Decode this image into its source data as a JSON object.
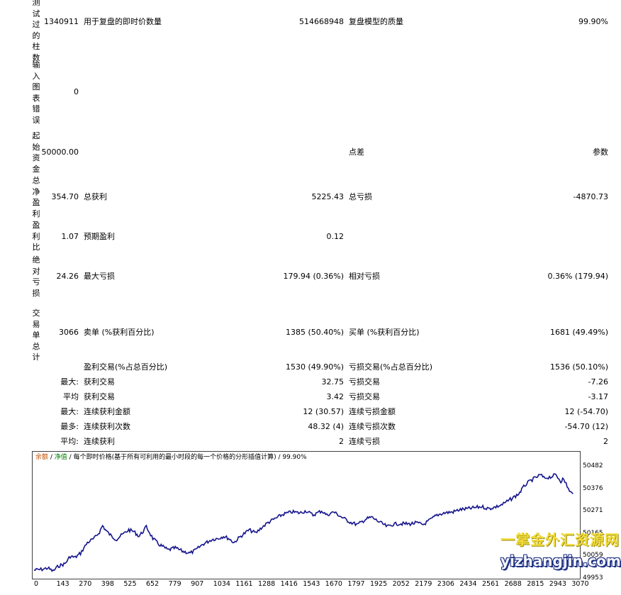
{
  "report": {
    "bars_label": "测试过的柱数",
    "bars_value": "1340911",
    "ticks_label": "用于复盘的即时价数量",
    "ticks_value": "514668948",
    "quality_label": "复盘模型的质量",
    "quality_value": "99.90%",
    "errors_label": "输入图表错误",
    "errors_value": "0",
    "deposit_label": "起始资金",
    "deposit_value": "50000.00",
    "spread_label": "点差",
    "spread_value": "参数",
    "net_profit_label": "总净盈利",
    "net_profit_value": "354.70",
    "gross_profit_label": "总获利",
    "gross_profit_value": "5225.43",
    "gross_loss_label": "总亏损",
    "gross_loss_value": "-4870.73",
    "profit_factor_label": "盈利比",
    "profit_factor_value": "1.07",
    "expected_payoff_label": "预期盈利",
    "expected_payoff_value": "0.12",
    "abs_drawdown_label": "绝对亏损",
    "abs_drawdown_value": "24.26",
    "max_drawdown_label": "最大亏损",
    "max_drawdown_value": "179.94 (0.36%)",
    "rel_drawdown_label": "相对亏损",
    "rel_drawdown_value": "0.36% (179.94)",
    "total_trades_label": "交易单总计",
    "total_trades_value": "3066",
    "short_label": "卖单 (%获利百分比)",
    "short_value": "1385 (50.40%)",
    "long_label": "买单 (%获利百分比)",
    "long_value": "1681 (49.49%)",
    "profit_trades_label": "盈利交易(%占总百分比)",
    "profit_trades_value": "1530 (49.90%)",
    "loss_trades_label": "亏损交易(%占总百分比)",
    "loss_trades_value": "1536 (50.10%)",
    "largest_prefix": "最大:",
    "largest_profit_label": "获利交易",
    "largest_profit_value": "32.75",
    "largest_loss_label": "亏损交易",
    "largest_loss_value": "-7.26",
    "average_prefix": "平均",
    "avg_profit_label": "获利交易",
    "avg_profit_value": "3.42",
    "avg_loss_label": "亏损交易",
    "avg_loss_value": "-3.17",
    "max_prefix": "最大:",
    "max_consec_wins_label": "连续获利金额",
    "max_consec_wins_value": "12 (30.57)",
    "max_consec_losses_label": "连续亏损金额",
    "max_consec_losses_value": "12 (-54.70)",
    "maximal_prefix": "最多:",
    "maximal_consec_profit_label": "连续获利次数",
    "maximal_consec_profit_value": "48.32 (4)",
    "maximal_consec_loss_label": "连续亏损次数",
    "maximal_consec_loss_value": "-54.70 (12)",
    "avg_consec_prefix": "平均:",
    "avg_consec_wins_label": "连续获利",
    "avg_consec_wins_value": "2",
    "avg_consec_losses_label": "连续亏损",
    "avg_consec_losses_value": "2"
  },
  "chart_legend": {
    "balance": "余额",
    "sep1": " / ",
    "equity": "净值",
    "sep2": " / ",
    "text": "每个即时价格(基于所有可利用的最小时段的每一个价格的分形插值计算) / 99.90%"
  },
  "watermark": {
    "line1": "一掌金外汇资源网",
    "line2": "yizhangjin.com"
  },
  "colors": {
    "balance_line": "#14148c",
    "legend_balance": "#c05000",
    "legend_equity": "#008000"
  },
  "chart_data": {
    "type": "line",
    "x_ticks": [
      "0",
      "143",
      "270",
      "398",
      "525",
      "652",
      "779",
      "907",
      "1034",
      "1161",
      "1288",
      "1416",
      "1543",
      "1670",
      "1797",
      "1925",
      "2052",
      "2179",
      "2306",
      "2434",
      "2561",
      "2688",
      "2815",
      "2943",
      "3070"
    ],
    "y_ticks": [
      "50482",
      "50376",
      "50271",
      "50165",
      "50059",
      "49953"
    ],
    "ylim": [
      49953,
      50482
    ],
    "xlim": [
      0,
      3162
    ],
    "grid": false,
    "series": [
      {
        "x": [
          0,
          40,
          80,
          110,
          143,
          180,
          210,
          240,
          270,
          310,
          350,
          380,
          398,
          420,
          450,
          480,
          500,
          525,
          550,
          580,
          610,
          640,
          652,
          690,
          720,
          750,
          779,
          820,
          860,
          907,
          940,
          980,
          1034,
          1070,
          1100,
          1130,
          1161,
          1200,
          1250,
          1288,
          1320,
          1360,
          1416,
          1450,
          1500,
          1543,
          1580,
          1620,
          1670,
          1700,
          1740,
          1797,
          1840,
          1880,
          1925,
          1960,
          2000,
          2052,
          2080,
          2120,
          2179,
          2220,
          2260,
          2306,
          2340,
          2380,
          2434,
          2470,
          2520,
          2561,
          2600,
          2640,
          2688,
          2720,
          2760,
          2815,
          2850,
          2880,
          2900,
          2943,
          2960,
          3000,
          3030,
          3060,
          3070,
          3090,
          3110,
          3130
        ],
        "y": [
          49990,
          49993,
          50000,
          49985,
          50010,
          50020,
          50055,
          50050,
          50070,
          50120,
          50140,
          50170,
          50200,
          50175,
          50150,
          50135,
          50150,
          50165,
          50180,
          50172,
          50150,
          50180,
          50195,
          50140,
          50115,
          50100,
          50085,
          50095,
          50080,
          50070,
          50085,
          50112,
          50135,
          50140,
          50150,
          50140,
          50120,
          50150,
          50180,
          50165,
          50190,
          50215,
          50240,
          50255,
          50265,
          50260,
          50270,
          50250,
          50270,
          50250,
          50265,
          50235,
          50215,
          50205,
          50230,
          50240,
          50220,
          50195,
          50205,
          50210,
          50208,
          50213,
          50205,
          50230,
          50250,
          50260,
          50265,
          50275,
          50280,
          50285,
          50290,
          50280,
          50290,
          50300,
          50320,
          50350,
          50390,
          50410,
          50420,
          50440,
          50425,
          50430,
          50440,
          50410,
          50420,
          50400,
          50360,
          50350
        ]
      }
    ]
  }
}
